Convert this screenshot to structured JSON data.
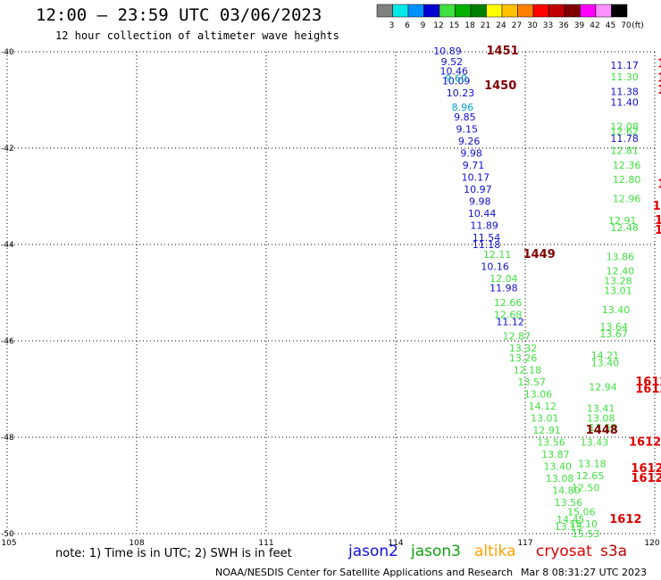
{
  "header": {
    "title": "12:00 – 23:59 UTC 03/06/2023",
    "subtitle": "12 hour collection of altimeter wave heights"
  },
  "colorbar": {
    "labels": [
      "3",
      "6",
      "9",
      "12",
      "15",
      "18",
      "21",
      "24",
      "27",
      "30",
      "33",
      "36",
      "39",
      "42",
      "45",
      "70"
    ],
    "unit": "(ft)",
    "colors": [
      "#808080",
      "#00e8e8",
      "#0090ff",
      "#0000d0",
      "#40e040",
      "#00b000",
      "#008000",
      "#ffff00",
      "#ffc000",
      "#ff8000",
      "#ff0000",
      "#c00000",
      "#800000",
      "#ff00ff",
      "#ff90ff",
      "#000000"
    ]
  },
  "note": "note:  1) Time is in UTC;  2) SWH is in feet",
  "satellites": [
    {
      "name": "jason2",
      "color": "#1010e0"
    },
    {
      "name": "jason3",
      "color": "#10a010"
    },
    {
      "name": "altika",
      "color": "#ffa000"
    },
    {
      "name": "cryosat",
      "color": "#e00000"
    },
    {
      "name": "s3a",
      "color": "#c00000"
    }
  ],
  "footer": {
    "credit": "NOAA/NESDIS Center for Satellite Applications and Research",
    "timestamp": "Mar  8 08:31:27 UTC 2023"
  },
  "chart_data": {
    "type": "scatter",
    "x_ticks": [
      "105",
      "108",
      "111",
      "114",
      "117",
      "120"
    ],
    "y_ticks": [
      "-40",
      "-42",
      "-44",
      "-46",
      "-48",
      "-50"
    ],
    "xlim": [
      105,
      120
    ],
    "ylim": [
      -50,
      -40
    ],
    "grid": true,
    "series": [
      {
        "name": "jason2",
        "color": "#1010d0",
        "points": [
          {
            "x": 115.2,
            "y": -39.98,
            "label": "10.89"
          },
          {
            "x": 115.3,
            "y": -40.2,
            "label": "9.52"
          },
          {
            "x": 115.35,
            "y": -40.4,
            "label": "10.46"
          },
          {
            "x": 115.4,
            "y": -40.6,
            "label": "10.09"
          },
          {
            "x": 115.5,
            "y": -40.85,
            "label": "10.23"
          },
          {
            "x": 115.6,
            "y": -41.35,
            "label": "9.85"
          },
          {
            "x": 115.65,
            "y": -41.6,
            "label": "9.15"
          },
          {
            "x": 115.7,
            "y": -41.85,
            "label": "9.26"
          },
          {
            "x": 115.75,
            "y": -42.1,
            "label": "9.98"
          },
          {
            "x": 115.8,
            "y": -42.35,
            "label": "9.71"
          },
          {
            "x": 115.85,
            "y": -42.6,
            "label": "10.17"
          },
          {
            "x": 115.9,
            "y": -42.85,
            "label": "10.97"
          },
          {
            "x": 115.95,
            "y": -43.1,
            "label": "9.98"
          },
          {
            "x": 116.0,
            "y": -43.35,
            "label": "10.44"
          },
          {
            "x": 116.05,
            "y": -43.6,
            "label": "11.89"
          },
          {
            "x": 116.1,
            "y": -43.85,
            "label": "11.54"
          },
          {
            "x": 116.1,
            "y": -44.0,
            "label": "11.18"
          },
          {
            "x": 116.3,
            "y": -44.45,
            "label": "10.16"
          },
          {
            "x": 116.5,
            "y": -44.9,
            "label": "11.98"
          },
          {
            "x": 116.65,
            "y": -45.6,
            "label": "11.12"
          },
          {
            "x": 119.3,
            "y": -40.28,
            "label": "11.17"
          },
          {
            "x": 119.3,
            "y": -40.82,
            "label": "11.38"
          },
          {
            "x": 119.3,
            "y": -41.05,
            "label": "11.40"
          },
          {
            "x": 119.3,
            "y": -41.8,
            "label": "11.78"
          }
        ]
      },
      {
        "name": "jason2-light",
        "color": "#00a0c8",
        "points": [
          {
            "x": 115.4,
            "y": -40.55,
            "label": "9.60"
          },
          {
            "x": 115.55,
            "y": -41.15,
            "label": "8.96"
          }
        ]
      },
      {
        "name": "jason3",
        "color": "#40e040",
        "points": [
          {
            "x": 116.35,
            "y": -44.2,
            "label": "12.11"
          },
          {
            "x": 116.5,
            "y": -44.7,
            "label": "12.04"
          },
          {
            "x": 116.6,
            "y": -45.2,
            "label": "12.66"
          },
          {
            "x": 116.6,
            "y": -45.45,
            "label": "12.68"
          },
          {
            "x": 116.8,
            "y": -45.9,
            "label": "12.87"
          },
          {
            "x": 116.95,
            "y": -46.15,
            "label": "13.32"
          },
          {
            "x": 116.95,
            "y": -46.35,
            "label": "13.26"
          },
          {
            "x": 117.05,
            "y": -46.6,
            "label": "12.18"
          },
          {
            "x": 117.15,
            "y": -46.85,
            "label": "13.57"
          },
          {
            "x": 117.3,
            "y": -47.1,
            "label": "13.06"
          },
          {
            "x": 117.4,
            "y": -47.35,
            "label": "14.12"
          },
          {
            "x": 117.45,
            "y": -47.6,
            "label": "13.01"
          },
          {
            "x": 117.5,
            "y": -47.85,
            "label": "12.91"
          },
          {
            "x": 117.6,
            "y": -48.1,
            "label": "13.56"
          },
          {
            "x": 117.7,
            "y": -48.35,
            "label": "13.87"
          },
          {
            "x": 117.75,
            "y": -48.6,
            "label": "13.40"
          },
          {
            "x": 117.8,
            "y": -48.85,
            "label": "13.08"
          },
          {
            "x": 117.95,
            "y": -49.1,
            "label": "14.80"
          },
          {
            "x": 118.0,
            "y": -49.35,
            "label": "13.56"
          },
          {
            "x": 118.05,
            "y": -49.7,
            "label": "14.45"
          },
          {
            "x": 118.0,
            "y": -49.85,
            "label": "13.15"
          },
          {
            "x": 118.3,
            "y": -49.55,
            "label": "15.06"
          },
          {
            "x": 118.35,
            "y": -49.8,
            "label": "15.10"
          },
          {
            "x": 118.4,
            "y": -50.0,
            "label": "15.53"
          },
          {
            "x": 119.3,
            "y": -40.52,
            "label": "11.30"
          },
          {
            "x": 119.3,
            "y": -41.55,
            "label": "12.08"
          },
          {
            "x": 119.3,
            "y": -41.65,
            "label": "12.62"
          },
          {
            "x": 119.3,
            "y": -42.05,
            "label": "12.81"
          },
          {
            "x": 119.35,
            "y": -42.35,
            "label": "12.36"
          },
          {
            "x": 119.35,
            "y": -42.65,
            "label": "12.80"
          },
          {
            "x": 119.35,
            "y": -43.05,
            "label": "12.96"
          },
          {
            "x": 119.25,
            "y": -43.5,
            "label": "12.91"
          },
          {
            "x": 119.3,
            "y": -43.65,
            "label": "12.48"
          },
          {
            "x": 119.2,
            "y": -44.25,
            "label": "13.86"
          },
          {
            "x": 119.2,
            "y": -44.55,
            "label": "12.40"
          },
          {
            "x": 119.15,
            "y": -44.75,
            "label": "13.28"
          },
          {
            "x": 119.15,
            "y": -44.95,
            "label": "13.01"
          },
          {
            "x": 119.1,
            "y": -45.35,
            "label": "13.40"
          },
          {
            "x": 119.05,
            "y": -45.7,
            "label": "13.64"
          },
          {
            "x": 119.05,
            "y": -45.85,
            "label": "13.67"
          },
          {
            "x": 118.85,
            "y": -46.3,
            "label": "14.21"
          },
          {
            "x": 118.85,
            "y": -46.45,
            "label": "13.40"
          },
          {
            "x": 118.8,
            "y": -46.95,
            "label": "12.94"
          },
          {
            "x": 118.75,
            "y": -47.4,
            "label": "13.41"
          },
          {
            "x": 118.75,
            "y": -47.6,
            "label": "13.08"
          },
          {
            "x": 118.8,
            "y": -47.8,
            "label": "13.53"
          },
          {
            "x": 118.6,
            "y": -48.1,
            "label": "13.43"
          },
          {
            "x": 118.55,
            "y": -48.55,
            "label": "13.18"
          },
          {
            "x": 118.5,
            "y": -48.8,
            "label": "12.65"
          },
          {
            "x": 118.4,
            "y": -49.05,
            "label": "12.50"
          }
        ]
      },
      {
        "name": "pass-labels-dark",
        "color": "#800000",
        "points": [
          {
            "x": 116.1,
            "y": -39.98,
            "label": "1451"
          },
          {
            "x": 116.05,
            "y": -40.7,
            "label": "1450"
          },
          {
            "x": 116.95,
            "y": -44.2,
            "label": "1449"
          },
          {
            "x": 118.4,
            "y": -47.85,
            "label": "1448"
          }
        ]
      },
      {
        "name": "pass-labels-red",
        "color": "#e00000",
        "points": [
          {
            "x": 120.1,
            "y": -40.25,
            "label": "1"
          },
          {
            "x": 120.1,
            "y": -40.55,
            "label": "1"
          },
          {
            "x": 120.1,
            "y": -40.8,
            "label": "1"
          },
          {
            "x": 120.1,
            "y": -42.75,
            "label": "161"
          },
          {
            "x": 119.95,
            "y": -43.2,
            "label": "161"
          },
          {
            "x": 120.0,
            "y": -43.5,
            "label": "161"
          },
          {
            "x": 120.0,
            "y": -43.7,
            "label": "161"
          },
          {
            "x": 119.55,
            "y": -46.85,
            "label": "1612"
          },
          {
            "x": 119.55,
            "y": -47.0,
            "label": "1612"
          },
          {
            "x": 119.4,
            "y": -48.1,
            "label": "1612"
          },
          {
            "x": 119.45,
            "y": -48.65,
            "label": "1612"
          },
          {
            "x": 119.45,
            "y": -48.85,
            "label": "1612"
          },
          {
            "x": 118.95,
            "y": -49.7,
            "label": "1612"
          }
        ]
      }
    ]
  }
}
